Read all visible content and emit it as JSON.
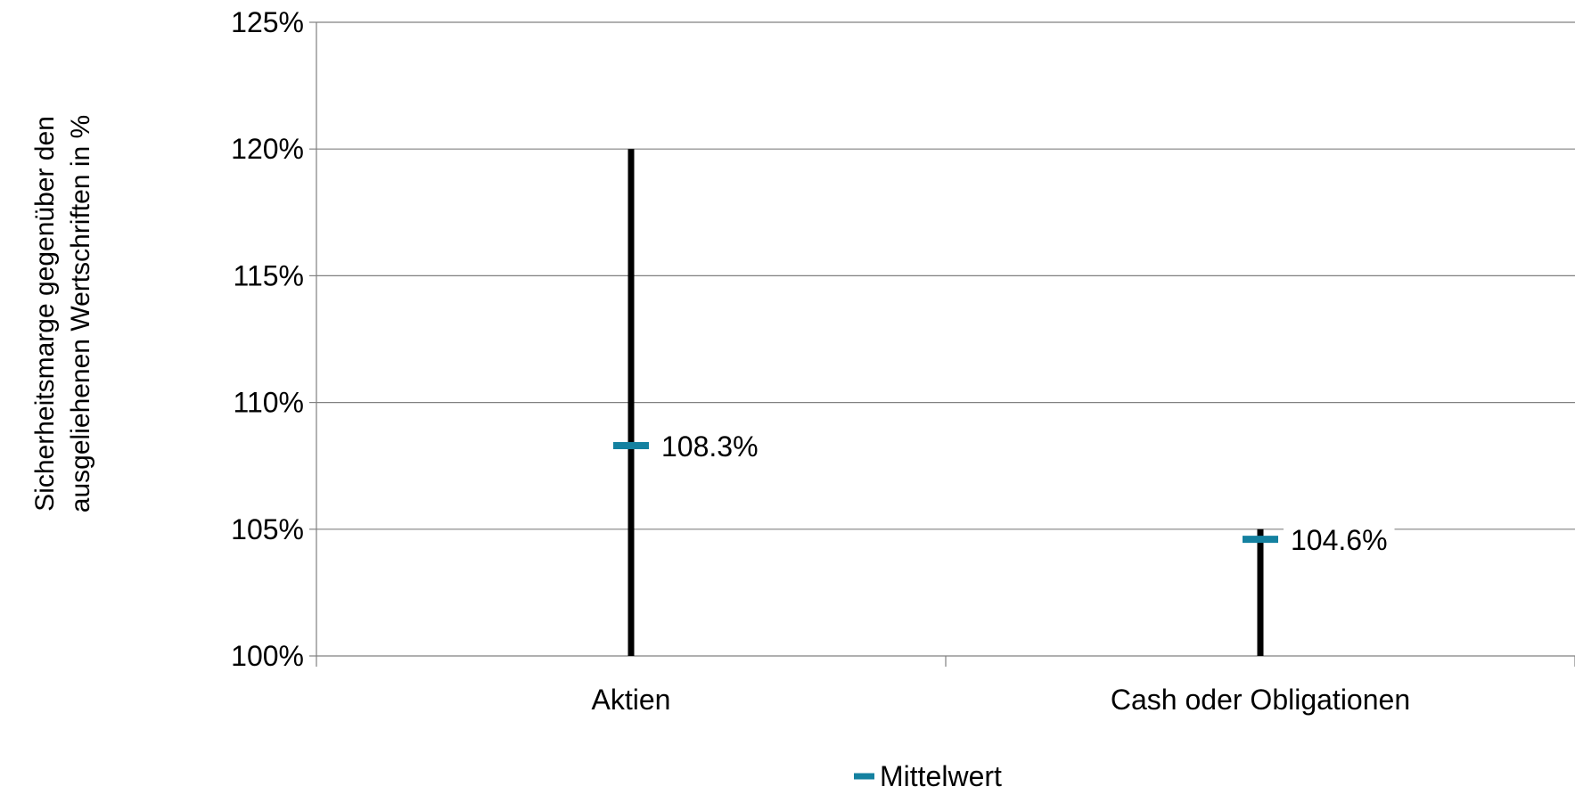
{
  "chart_data": {
    "type": "bar",
    "subtype": "range-with-mean-marker",
    "title": "",
    "ylabel": "Sicherheitsmarge gegenüber den ausgeliehenen Wertschriften in %",
    "ylabel_lines": [
      "Sicherheitsmarge gegenüber den",
      "ausgeliehenen Wertschriften in %"
    ],
    "xlabel": "",
    "ylim": [
      100,
      125
    ],
    "ytick_step": 5,
    "ytick_labels": [
      "100%",
      "105%",
      "110%",
      "115%",
      "120%",
      "125%"
    ],
    "grid": true,
    "legend_position": "bottom-center",
    "categories": [
      "Aktien",
      "Cash oder Obligationen"
    ],
    "ranges": [
      {
        "low": 100,
        "high": 120
      },
      {
        "low": 100,
        "high": 105
      }
    ],
    "series": [
      {
        "name": "Mittelwert",
        "values": [
          108.3,
          104.6
        ],
        "data_labels": [
          "108.3%",
          "104.6%"
        ],
        "color": "#1481a0"
      }
    ],
    "range_color": "#000000",
    "grid_color": "#808080"
  }
}
